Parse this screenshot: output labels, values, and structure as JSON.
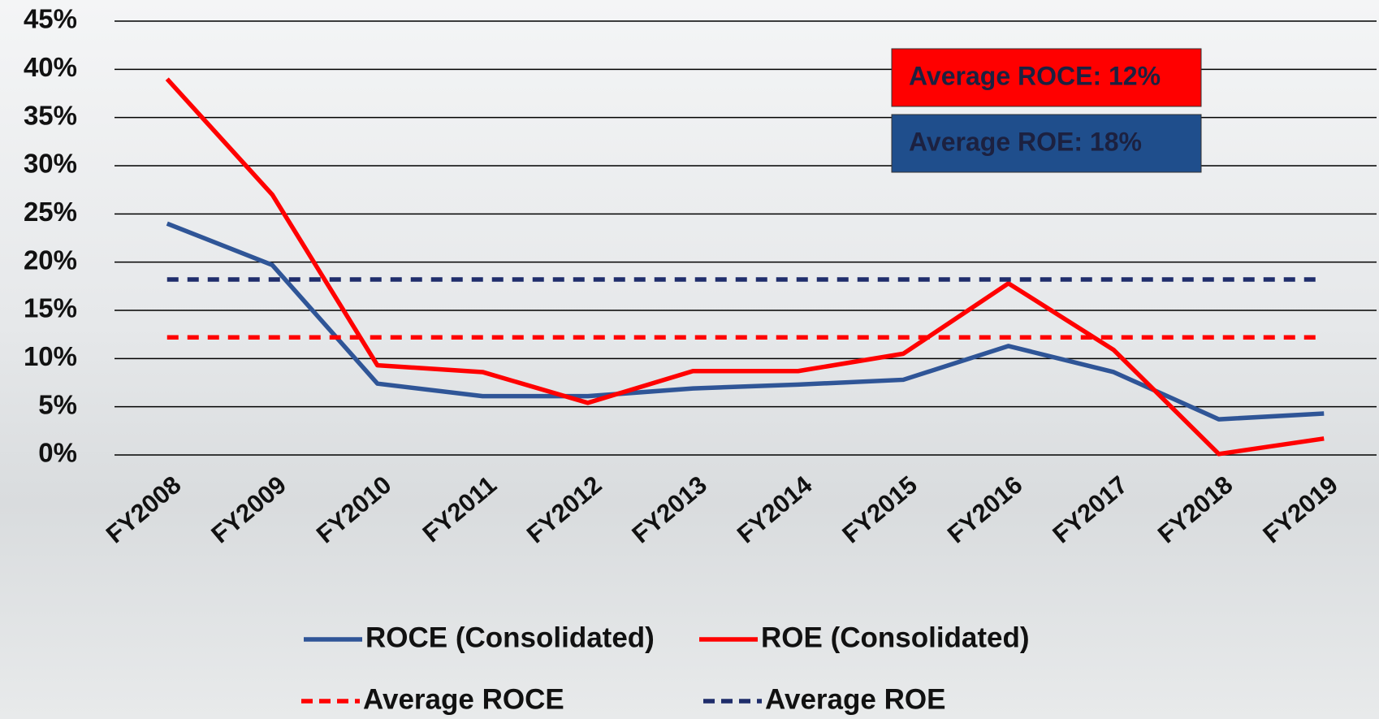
{
  "chart_data": {
    "type": "line",
    "categories": [
      "FY2008",
      "FY2009",
      "FY2010",
      "FY2011",
      "FY2012",
      "FY2013",
      "FY2014",
      "FY2015",
      "FY2016",
      "FY2017",
      "FY2018",
      "FY2019"
    ],
    "series": [
      {
        "name": "ROCE (Consolidated)",
        "color": "#2f5597",
        "dashed": false,
        "values": [
          24,
          19.7,
          7.4,
          6.1,
          6.1,
          6.9,
          7.3,
          7.8,
          11.3,
          8.6,
          3.7,
          4.3
        ]
      },
      {
        "name": "ROE (Consolidated)",
        "color": "#ff0000",
        "dashed": false,
        "values": [
          39,
          27,
          9.3,
          8.6,
          5.4,
          8.7,
          8.7,
          10.5,
          17.8,
          10.9,
          0.1,
          1.7
        ]
      },
      {
        "name": "Average ROCE",
        "color": "#ff0000",
        "dashed": true,
        "values": [
          12.2,
          12.2,
          12.2,
          12.2,
          12.2,
          12.2,
          12.2,
          12.2,
          12.2,
          12.2,
          12.2,
          12.2
        ]
      },
      {
        "name": "Average ROE",
        "color": "#1f2d6b",
        "dashed": true,
        "values": [
          18.2,
          18.2,
          18.2,
          18.2,
          18.2,
          18.2,
          18.2,
          18.2,
          18.2,
          18.2,
          18.2,
          18.2
        ]
      }
    ],
    "ylim": [
      0,
      45
    ],
    "yticks": [
      {
        "value": 0,
        "label": "0%"
      },
      {
        "value": 5,
        "label": "5%"
      },
      {
        "value": 10,
        "label": "10%"
      },
      {
        "value": 15,
        "label": "15%"
      },
      {
        "value": 20,
        "label": "20%"
      },
      {
        "value": 25,
        "label": "25%"
      },
      {
        "value": 30,
        "label": "30%"
      },
      {
        "value": 35,
        "label": "35%"
      },
      {
        "value": 40,
        "label": "40%"
      },
      {
        "value": 45,
        "label": "45%"
      }
    ],
    "grid": true,
    "legend": "bottom",
    "annotations": [
      {
        "text": "Average ROCE: 12%",
        "color": "#ff0000"
      },
      {
        "text": "Average ROE: 18%",
        "color": "#1f4e8c"
      }
    ]
  }
}
